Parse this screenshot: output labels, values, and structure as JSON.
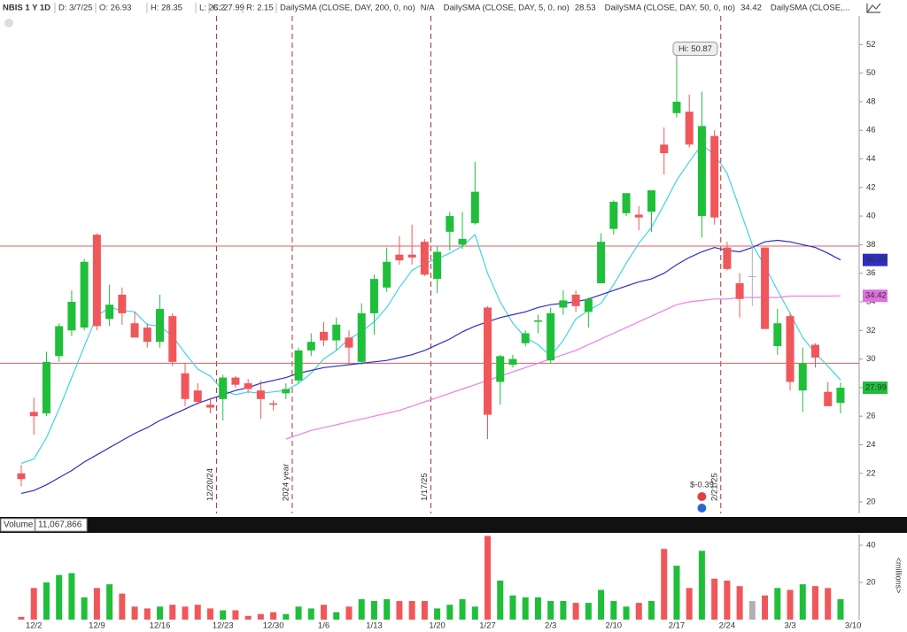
{
  "header": {
    "symbol": "NBIS 1 Y 1D",
    "date": "D: 3/7/25",
    "open": "O: 26.93",
    "high": "H: 28.35",
    "low": "L: 26.2",
    "close": "C: 27.99",
    "range": "R: 2.15",
    "legend": [
      {
        "name": "DailySMA (CLOSE, DAY, 200, 0, no)",
        "value": "N/A",
        "color": "#d49a00"
      },
      {
        "name": "DailySMA (CLOSE, DAY, 5, 0, no)",
        "value": "28.53",
        "color": "#1fb8d0"
      },
      {
        "name": "DailySMA (CLOSE, DAY, 50, 0, no)",
        "value": "34.42",
        "color": "#d040d0"
      },
      {
        "name": "DailySMA (CLOSE,...",
        "color": "#e02020"
      }
    ]
  },
  "chart_data": [
    {
      "type": "candlestick",
      "categories": [
        null,
        "12/2",
        null,
        null,
        null,
        null,
        "12/9",
        null,
        null,
        null,
        null,
        "12/16",
        null,
        null,
        null,
        null,
        "12/23",
        null,
        null,
        null,
        "12/30",
        null,
        null,
        null,
        "1/6",
        null,
        null,
        null,
        "1/13",
        null,
        null,
        null,
        null,
        "1/20",
        null,
        null,
        null,
        "1/27",
        null,
        null,
        null,
        null,
        "2/3",
        null,
        null,
        null,
        null,
        "2/10",
        null,
        null,
        null,
        null,
        "2/17",
        null,
        null,
        null,
        "2/24",
        null,
        null,
        null,
        null,
        "3/3",
        null,
        null,
        null,
        null,
        "3/10"
      ],
      "open": [
        22.0,
        26.3,
        26.2,
        30.2,
        32.0,
        32.2,
        38.7,
        32.8,
        34.5,
        32.5,
        32.2,
        31.2,
        33.0,
        29.0,
        27.8,
        26.8,
        27.2,
        28.7,
        28.3,
        27.8,
        26.9,
        27.6,
        28.5,
        30.6,
        31.9,
        31.3,
        31.5,
        29.8,
        33.2,
        35.0,
        37.3,
        37.3,
        38.2,
        35.6,
        38.9,
        38.0,
        39.5,
        33.6,
        28.4,
        29.6,
        31.1,
        32.6,
        29.9,
        33.6,
        34.5,
        33.3,
        35.3,
        39.1,
        40.2,
        40.1,
        40.3,
        45.0,
        47.2,
        47.3,
        40.0,
        45.6,
        37.8,
        35.3,
        35.8,
        37.8,
        30.9,
        33.0,
        27.8,
        31.0,
        27.7,
        26.93,
        null
      ],
      "high": [
        22.6,
        27.3,
        30.5,
        32.5,
        34.8,
        37.0,
        38.8,
        35.2,
        35.0,
        33.3,
        32.5,
        34.5,
        33.2,
        29.7,
        28.3,
        27.3,
        28.9,
        28.8,
        28.6,
        28.5,
        27.1,
        28.3,
        30.8,
        31.8,
        32.6,
        32.9,
        32.0,
        33.9,
        35.9,
        37.8,
        38.6,
        39.4,
        38.4,
        37.9,
        40.3,
        40.3,
        43.8,
        33.7,
        30.3,
        30.3,
        32.0,
        33.1,
        33.6,
        34.8,
        34.8,
        34.3,
        38.8,
        41.1,
        41.6,
        40.7,
        41.8,
        46.2,
        50.87,
        48.5,
        48.7,
        46.0,
        38.2,
        36.0,
        38.0,
        37.8,
        33.5,
        33.2,
        30.8,
        31.1,
        28.4,
        28.35,
        null
      ],
      "low": [
        21.1,
        24.7,
        26.0,
        29.8,
        31.6,
        32.0,
        32.0,
        32.3,
        32.4,
        31.5,
        30.8,
        30.8,
        29.5,
        26.7,
        26.8,
        26.2,
        25.7,
        28.0,
        27.6,
        25.8,
        26.4,
        27.2,
        28.3,
        30.2,
        30.9,
        30.6,
        29.6,
        29.6,
        31.7,
        34.7,
        36.6,
        36.6,
        35.8,
        34.6,
        37.6,
        37.7,
        39.4,
        24.4,
        26.8,
        29.4,
        30.9,
        31.8,
        29.7,
        33.1,
        33.3,
        32.2,
        35.3,
        38.7,
        40.0,
        39.0,
        38.9,
        42.9,
        46.9,
        44.8,
        38.5,
        39.4,
        36.2,
        32.9,
        33.7,
        32.2,
        30.3,
        27.8,
        26.3,
        29.4,
        26.7,
        26.2,
        null
      ],
      "close": [
        21.6,
        26.0,
        29.8,
        32.3,
        34.0,
        36.8,
        32.3,
        33.8,
        33.2,
        31.5,
        31.2,
        33.5,
        29.8,
        27.2,
        27.0,
        26.6,
        28.7,
        28.2,
        27.9,
        27.2,
        26.8,
        27.9,
        30.6,
        31.2,
        31.3,
        32.4,
        30.8,
        33.2,
        35.6,
        36.8,
        36.9,
        37.1,
        35.9,
        37.5,
        40.0,
        38.4,
        41.7,
        26.1,
        30.2,
        30.0,
        31.8,
        32.7,
        33.2,
        34.1,
        33.7,
        34.2,
        38.2,
        41.0,
        41.6,
        39.9,
        41.8,
        44.4,
        48.0,
        45.0,
        46.3,
        39.9,
        36.3,
        34.2,
        35.8,
        32.1,
        32.5,
        28.4,
        29.7,
        30.1,
        26.7,
        27.99,
        null
      ],
      "up_color": "#1fbf3a",
      "down_color": "#f0575a",
      "flat_color": "#b0b0b0",
      "series": [
        {
          "color": "#3fd3e8",
          "values": [
            22.7,
            23.0,
            24.5,
            26.5,
            28.7,
            30.9,
            33.0,
            33.6,
            33.4,
            33.3,
            32.4,
            32.3,
            31.6,
            30.4,
            29.3,
            28.8,
            27.8,
            27.5,
            27.7,
            27.6,
            27.7,
            27.8,
            28.3,
            29.0,
            30.0,
            30.6,
            31.4,
            31.9,
            32.6,
            33.6,
            35.0,
            36.2,
            36.7,
            37.0,
            37.4,
            37.9,
            38.7,
            36.0,
            34.0,
            32.5,
            31.5,
            31.0,
            30.2,
            31.3,
            32.8,
            33.4,
            33.9,
            35.2,
            36.7,
            38.1,
            39.2,
            40.8,
            42.5,
            43.8,
            45.0,
            44.3,
            43.0,
            40.5,
            38.0,
            36.5,
            34.8,
            33.2,
            31.5,
            30.4,
            29.5,
            28.53,
            null
          ]
        },
        {
          "color": "#2d2dc9",
          "values": [
            20.6,
            20.8,
            21.2,
            21.7,
            22.2,
            22.8,
            23.3,
            23.8,
            24.3,
            24.8,
            25.2,
            25.7,
            26.1,
            26.5,
            26.9,
            27.2,
            27.5,
            27.8,
            28.0,
            28.3,
            28.5,
            28.7,
            29.0,
            29.2,
            29.4,
            29.5,
            29.6,
            29.7,
            29.8,
            29.9,
            30.1,
            30.3,
            30.6,
            31.0,
            31.4,
            31.9,
            32.3,
            32.6,
            32.9,
            33.1,
            33.3,
            33.6,
            33.8,
            33.9,
            34.0,
            34.2,
            34.5,
            34.8,
            35.1,
            35.4,
            35.6,
            36.0,
            36.6,
            37.1,
            37.5,
            37.8,
            37.6,
            37.5,
            37.8,
            38.2,
            38.3,
            38.2,
            38.0,
            37.8,
            37.4,
            36.93,
            null
          ]
        },
        {
          "color": "#f07cf0",
          "values": [
            null,
            null,
            null,
            null,
            null,
            null,
            null,
            null,
            null,
            null,
            null,
            null,
            null,
            null,
            null,
            null,
            null,
            null,
            null,
            null,
            null,
            24.4,
            24.7,
            25.0,
            25.2,
            25.4,
            25.6,
            25.8,
            26.0,
            26.2,
            26.4,
            26.7,
            27.0,
            27.3,
            27.6,
            27.9,
            28.2,
            28.5,
            28.8,
            29.1,
            29.4,
            29.7,
            30.0,
            30.3,
            30.6,
            31.0,
            31.4,
            31.8,
            32.2,
            32.6,
            33.0,
            33.4,
            33.8,
            34.0,
            34.1,
            34.2,
            34.2,
            34.3,
            34.3,
            34.3,
            34.3,
            34.4,
            34.4,
            34.4,
            34.4,
            34.42,
            null
          ]
        }
      ],
      "price_lines": [
        {
          "value": 37.9,
          "color": "#e06060"
        },
        {
          "value": 29.7,
          "color": "#e06060"
        }
      ],
      "badges": [
        {
          "value": 36.93,
          "color": "#2d2dc9"
        },
        {
          "value": 34.42,
          "color": "#e070e0"
        },
        {
          "value": 27.99,
          "color": "#1fbf3a"
        }
      ],
      "events": [
        "12/20/24",
        "2024 year",
        "1/17/25",
        "2/21/25"
      ],
      "annotations": {
        "high": "Hi: 50.87",
        "dividend": "$-0.39"
      },
      "ylim": [
        19.2,
        54.0
      ],
      "yticks": [
        20,
        22,
        24,
        26,
        28,
        30,
        32,
        34,
        36,
        38,
        40,
        42,
        44,
        46,
        48,
        50,
        52
      ]
    },
    {
      "type": "bar",
      "title": "Volume",
      "subtitle": "11,067,866",
      "y_label": "<millions>",
      "values": [
        1.5,
        17,
        20,
        24,
        25,
        12,
        17,
        19,
        14,
        7,
        6,
        7,
        8,
        7,
        8,
        6,
        5,
        5,
        2,
        3,
        4,
        3,
        7,
        6,
        8,
        4,
        7,
        11,
        10,
        11,
        10,
        10,
        10,
        6,
        8,
        11,
        7,
        45,
        21,
        13,
        12,
        12,
        10,
        10,
        9,
        9,
        16,
        10,
        7,
        9,
        10,
        38,
        29,
        17,
        37,
        22,
        21,
        18,
        10,
        13,
        17,
        16,
        19,
        18,
        17,
        11,
        null
      ],
      "ylim": [
        0,
        45.7
      ],
      "yticks": [
        20,
        40
      ]
    }
  ]
}
